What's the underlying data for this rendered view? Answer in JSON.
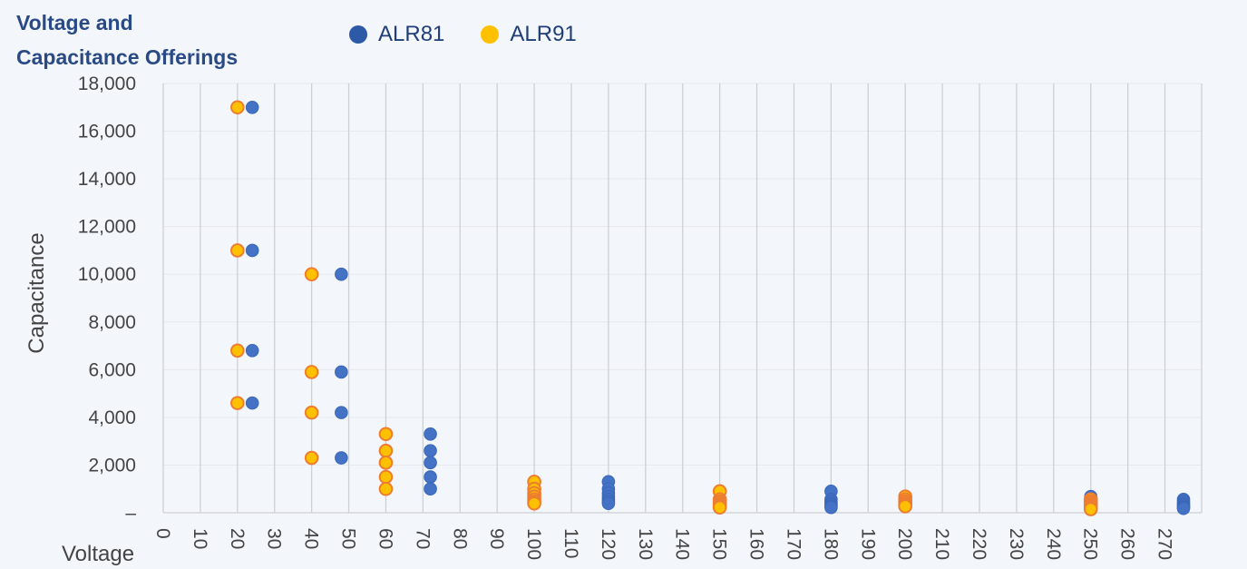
{
  "chart_data": {
    "type": "scatter",
    "title": "Voltage and\nCapacitance Offerings",
    "xlabel": "Voltage",
    "ylabel": "Capacitance",
    "xlim": [
      0,
      275
    ],
    "ylim": [
      0,
      18000
    ],
    "x_ticks": [
      "0",
      "10",
      "20",
      "30",
      "40",
      "50",
      "60",
      "70",
      "80",
      "90",
      "100",
      "110",
      "120",
      "130",
      "140",
      "150",
      "160",
      "170",
      "180",
      "190",
      "200",
      "210",
      "220",
      "230",
      "240",
      "250",
      "260",
      "270"
    ],
    "y_ticks": [
      "–",
      "2,000",
      "4,000",
      "6,000",
      "8,000",
      "10,000",
      "12,000",
      "14,000",
      "16,000",
      "18,000"
    ],
    "grid": true,
    "legend_position": "top",
    "series": [
      {
        "name": "ALR81",
        "color": "#2d5aa6",
        "marker_color": "#4472c4",
        "points": [
          [
            24,
            17000
          ],
          [
            24,
            11000
          ],
          [
            24,
            6800
          ],
          [
            24,
            4600
          ],
          [
            48,
            10000
          ],
          [
            48,
            5900
          ],
          [
            48,
            4200
          ],
          [
            48,
            2300
          ],
          [
            72,
            3300
          ],
          [
            72,
            2600
          ],
          [
            72,
            2100
          ],
          [
            72,
            1500
          ],
          [
            72,
            1000
          ],
          [
            120,
            1300
          ],
          [
            120,
            1000
          ],
          [
            120,
            820
          ],
          [
            120,
            680
          ],
          [
            120,
            560
          ],
          [
            120,
            470
          ],
          [
            120,
            390
          ],
          [
            180,
            900
          ],
          [
            180,
            560
          ],
          [
            180,
            470
          ],
          [
            180,
            390
          ],
          [
            180,
            330
          ],
          [
            180,
            270
          ],
          [
            180,
            220
          ],
          [
            250,
            680
          ],
          [
            250,
            560
          ],
          [
            250,
            470
          ],
          [
            250,
            390
          ],
          [
            250,
            330
          ],
          [
            250,
            270
          ],
          [
            250,
            180
          ],
          [
            250,
            150
          ],
          [
            275,
            560
          ],
          [
            275,
            470
          ],
          [
            275,
            390
          ],
          [
            275,
            330
          ],
          [
            275,
            270
          ],
          [
            275,
            220
          ],
          [
            275,
            180
          ]
        ]
      },
      {
        "name": "ALR91",
        "color": "#ffc000",
        "marker_color": "#ffc000",
        "points": [
          [
            20,
            17000
          ],
          [
            20,
            11000
          ],
          [
            20,
            6800
          ],
          [
            20,
            4600
          ],
          [
            40,
            10000
          ],
          [
            40,
            5900
          ],
          [
            40,
            4200
          ],
          [
            40,
            2300
          ],
          [
            60,
            3300
          ],
          [
            60,
            2600
          ],
          [
            60,
            2100
          ],
          [
            60,
            1500
          ],
          [
            60,
            1000
          ],
          [
            100,
            1300
          ],
          [
            100,
            1000
          ],
          [
            100,
            820
          ],
          [
            100,
            680
          ],
          [
            100,
            560
          ],
          [
            100,
            470
          ],
          [
            100,
            390
          ],
          [
            150,
            900
          ],
          [
            150,
            560
          ],
          [
            150,
            470
          ],
          [
            150,
            390
          ],
          [
            150,
            330
          ],
          [
            150,
            270
          ],
          [
            150,
            220
          ],
          [
            200,
            680
          ],
          [
            200,
            560
          ],
          [
            200,
            470
          ],
          [
            200,
            390
          ],
          [
            200,
            330
          ],
          [
            200,
            270
          ],
          [
            250,
            560
          ],
          [
            250,
            470
          ],
          [
            250,
            390
          ],
          [
            250,
            330
          ],
          [
            250,
            270
          ],
          [
            250,
            220
          ],
          [
            250,
            180
          ],
          [
            250,
            150
          ]
        ]
      }
    ]
  }
}
